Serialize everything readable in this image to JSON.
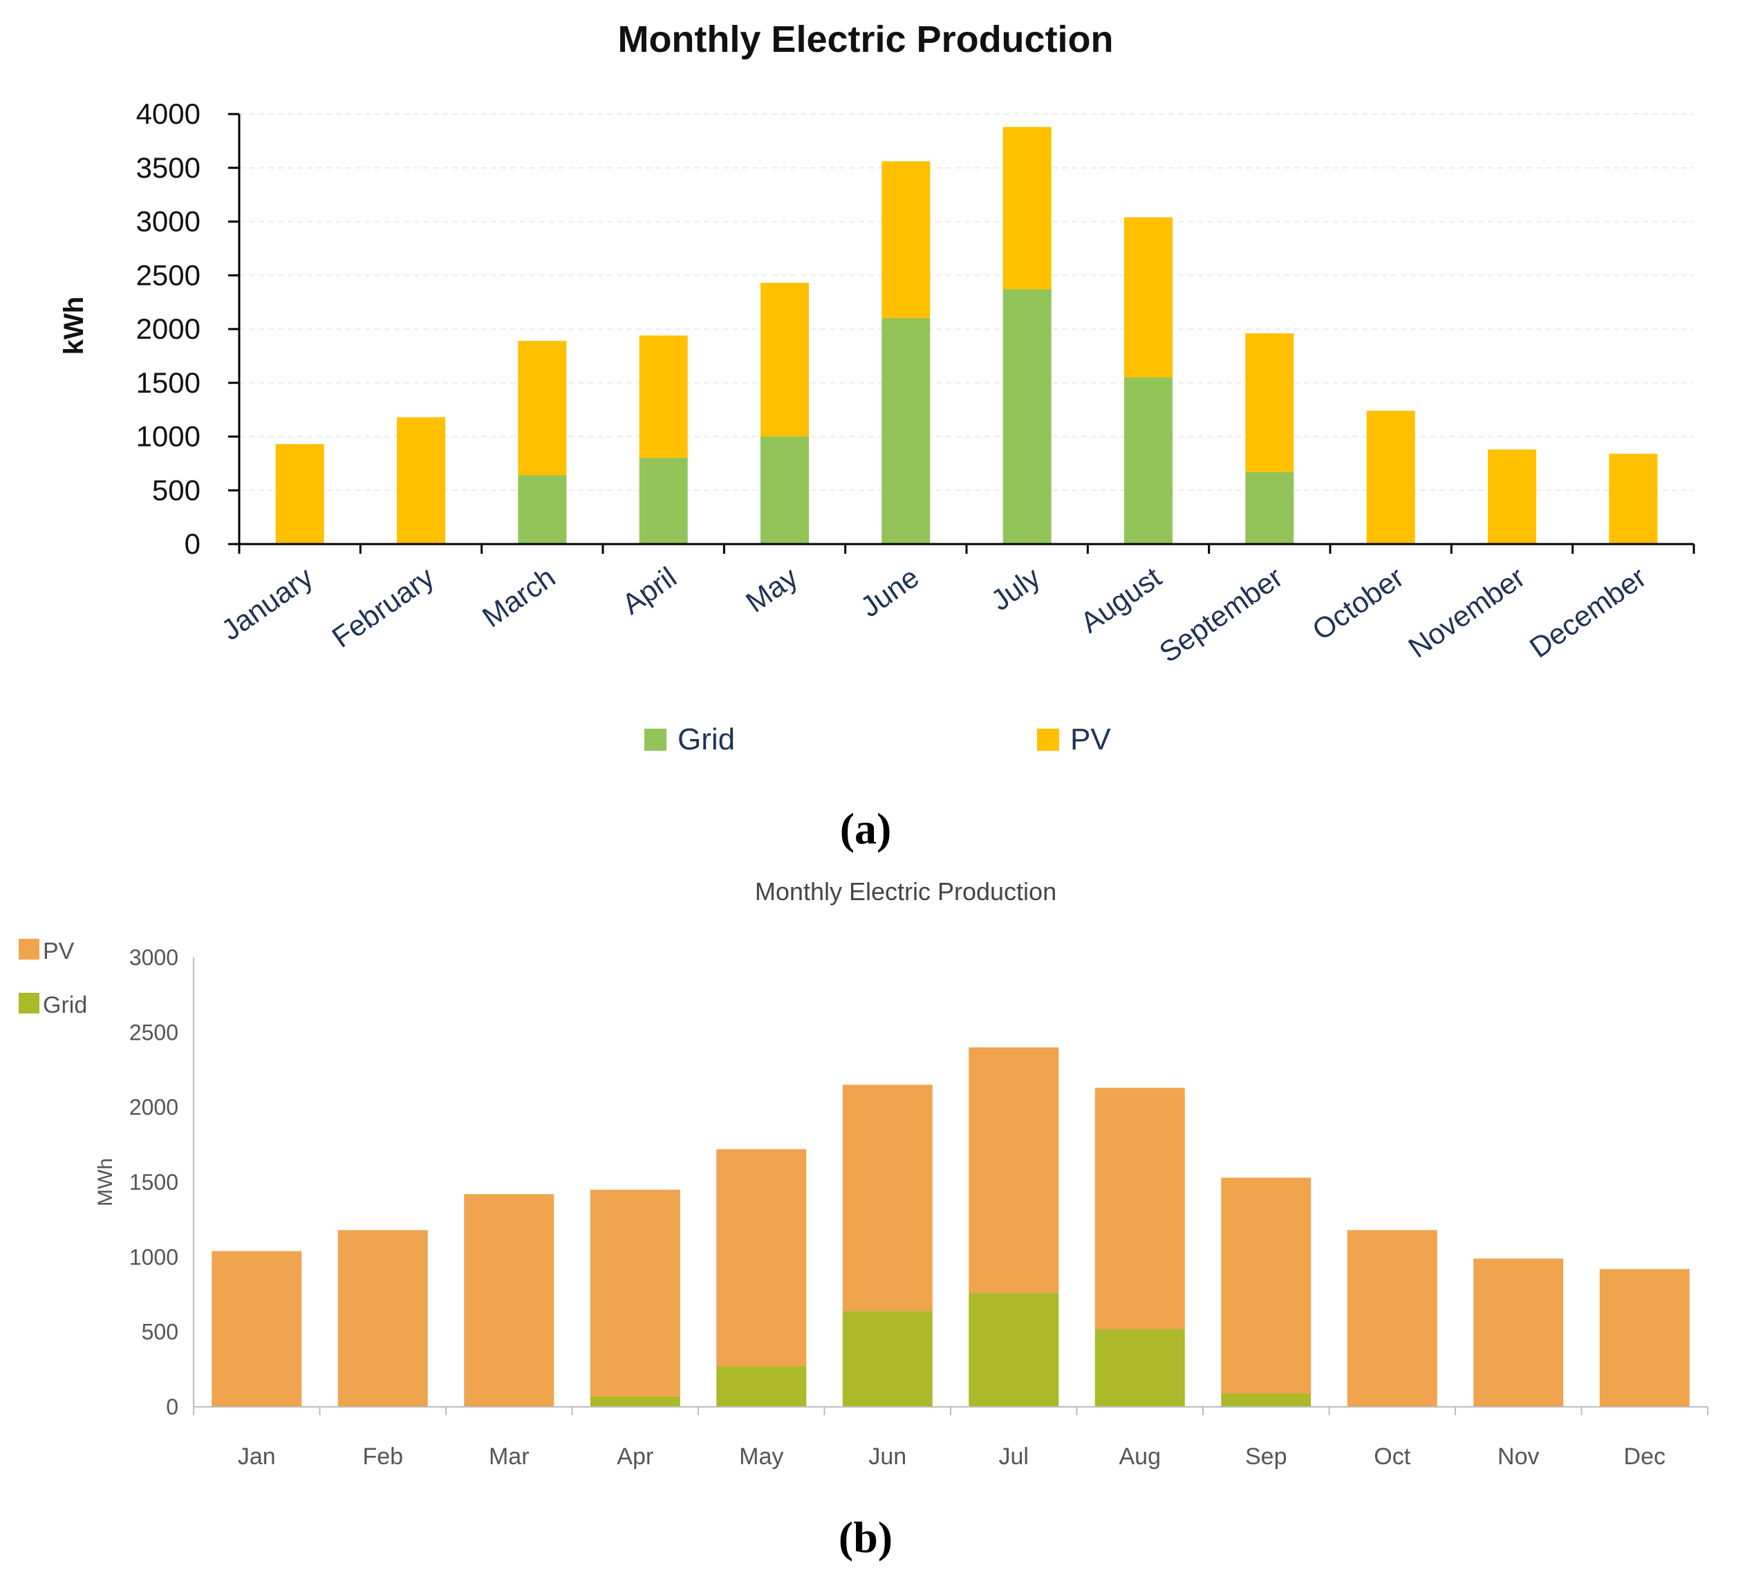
{
  "chart_data": [
    {
      "id": "a",
      "panel_label": "(a)",
      "type": "bar",
      "stacked": true,
      "title": "Monthly Electric Production",
      "xlabel": "",
      "ylabel": "kWh",
      "ylim": [
        0,
        4000
      ],
      "yticks": [
        0,
        500,
        1000,
        1500,
        2000,
        2500,
        3000,
        3500,
        4000
      ],
      "grid": true,
      "legend_position": "bottom",
      "categories": [
        "January",
        "February",
        "March",
        "April",
        "May",
        "June",
        "July",
        "August",
        "September",
        "October",
        "November",
        "December"
      ],
      "series": [
        {
          "name": "Grid",
          "color": "#92c459",
          "values": [
            0,
            0,
            640,
            800,
            1000,
            2100,
            2370,
            1550,
            670,
            0,
            0,
            0
          ]
        },
        {
          "name": "PV",
          "color": "#ffc000",
          "values": [
            930,
            1180,
            1250,
            1140,
            1430,
            1460,
            1510,
            1490,
            1290,
            1240,
            880,
            840
          ]
        }
      ]
    },
    {
      "id": "b",
      "panel_label": "(b)",
      "type": "bar",
      "stacked": true,
      "title": "Monthly Electric Production",
      "xlabel": "",
      "ylabel": "MWh",
      "ylim": [
        0,
        3000
      ],
      "yticks": [
        0,
        500,
        1000,
        1500,
        2000,
        2500,
        3000
      ],
      "grid": false,
      "legend_position": "top-left",
      "categories": [
        "Jan",
        "Feb",
        "Mar",
        "Apr",
        "May",
        "Jun",
        "Jul",
        "Aug",
        "Sep",
        "Oct",
        "Nov",
        "Dec"
      ],
      "series": [
        {
          "name": "Grid",
          "color": "#acb92a",
          "values": [
            0,
            0,
            0,
            70,
            270,
            640,
            760,
            520,
            90,
            0,
            0,
            0
          ]
        },
        {
          "name": "PV",
          "color": "#f0a44e",
          "values": [
            1040,
            1180,
            1420,
            1380,
            1450,
            1510,
            1640,
            1610,
            1440,
            1180,
            990,
            920
          ]
        }
      ]
    }
  ]
}
